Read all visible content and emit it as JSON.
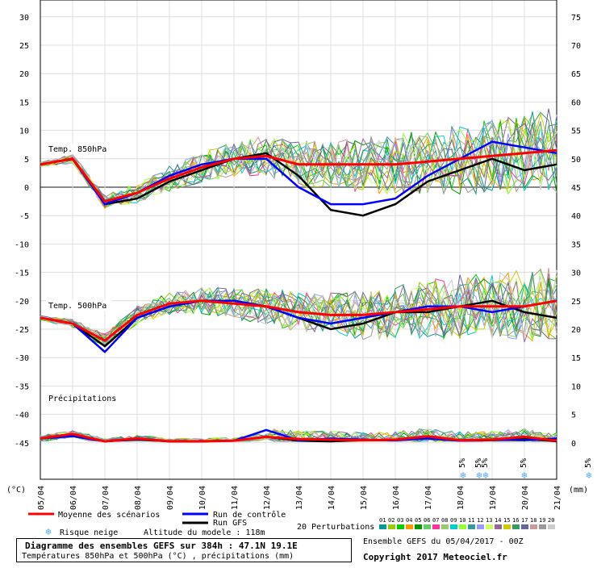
{
  "chart_data": {
    "type": "line",
    "dates": [
      "05/04",
      "06/04",
      "07/04",
      "08/04",
      "09/04",
      "10/04",
      "11/04",
      "12/04",
      "13/04",
      "14/04",
      "15/04",
      "16/04",
      "17/04",
      "18/04",
      "19/04",
      "20/04",
      "21/04"
    ],
    "left_axis_unit": "(°C)",
    "right_axis_unit": "(mm)",
    "left_ticks": [
      30,
      25,
      20,
      15,
      10,
      5,
      0,
      -5,
      -10,
      -15,
      -20,
      -25,
      -30,
      -35,
      -40,
      -45
    ],
    "right_ticks": [
      75,
      70,
      65,
      60,
      55,
      50,
      45,
      40,
      35,
      30,
      25,
      20,
      15,
      10,
      5,
      0
    ],
    "left_ylim": [
      -45,
      30
    ],
    "right_ylim": [
      0,
      75
    ],
    "panel_labels": {
      "t850": "Temp. 850hPa",
      "t500": "Temp. 500hPa",
      "precip": "Précipitations"
    },
    "snow_risk_label": "5%",
    "snow_days": [
      13.1,
      13.6,
      13.8,
      15.0,
      17.0
    ],
    "series": {
      "t850": {
        "gfs": [
          4,
          5,
          -3,
          -2,
          1,
          3,
          5,
          6,
          2,
          -4,
          -5,
          -3,
          1,
          3,
          5,
          3,
          4
        ],
        "control": [
          4,
          5,
          -3,
          -1,
          2,
          4,
          5,
          5,
          0,
          -3,
          -3,
          -2,
          2,
          5,
          8,
          7,
          6
        ],
        "mean": [
          4,
          5,
          -2.5,
          -1,
          1.5,
          3.5,
          5,
          5.5,
          4,
          4,
          4,
          4,
          4.5,
          5,
          5.5,
          6,
          6.5
        ]
      },
      "t500": {
        "gfs": [
          -23,
          -24,
          -28,
          -23,
          -21,
          -20,
          -20,
          -21,
          -23,
          -25,
          -24,
          -22,
          -22,
          -21,
          -20,
          -22,
          -23
        ],
        "control": [
          -23,
          -24,
          -29,
          -23,
          -21,
          -20,
          -20,
          -21,
          -23,
          -24,
          -23,
          -22,
          -21,
          -21,
          -22,
          -21,
          -20
        ],
        "mean": [
          -23,
          -24,
          -27,
          -22.5,
          -20.5,
          -20,
          -20.5,
          -21,
          -22,
          -22.5,
          -22.5,
          -22,
          -21.5,
          -21,
          -21,
          -21,
          -20
        ]
      },
      "precip_mm": {
        "gfs": [
          0.5,
          1.2,
          0,
          0.3,
          0,
          0,
          0.1,
          0.8,
          0.1,
          0,
          0.2,
          0.2,
          0.8,
          0.1,
          0.2,
          0.5,
          0
        ],
        "control": [
          0.5,
          0.9,
          0,
          0.4,
          0,
          0,
          0.1,
          2.0,
          0.2,
          0.5,
          0.3,
          0.2,
          0.5,
          0.1,
          0.3,
          0.2,
          0.5
        ],
        "mean": [
          0.5,
          1.3,
          0,
          0.5,
          0,
          0,
          0.1,
          0.8,
          0.4,
          0.3,
          0.2,
          0.3,
          0.9,
          0.2,
          0.3,
          0.8,
          0.1
        ]
      }
    },
    "legend": {
      "mean": "Moyenne des scénarios",
      "control": "Run de contrôle",
      "gfs": "Run GFS",
      "snow": "Risque neige",
      "altitude": "Altitude du modele : 118m",
      "perturbations_label": "20 Perturbations",
      "perturbation_ids": [
        "01",
        "02",
        "03",
        "04",
        "05",
        "06",
        "07",
        "08",
        "09",
        "10",
        "11",
        "12",
        "13",
        "14",
        "15",
        "16",
        "17",
        "18",
        "19",
        "20"
      ]
    },
    "colors": {
      "mean": "#ff0000",
      "control": "#0000ff",
      "gfs": "#000000",
      "perturbations": [
        "#009999",
        "#99cc00",
        "#00cc00",
        "#ff9900",
        "#009900",
        "#66cc66",
        "#ff3399",
        "#99cc66",
        "#00cccc",
        "#99ff33",
        "#339999",
        "#9999ff",
        "#ccff66",
        "#996699",
        "#cccc00",
        "#339966",
        "#666699",
        "#cc9999",
        "#999999",
        "#cccccc"
      ]
    }
  },
  "footer": {
    "title": "Diagramme des ensembles GEFS sur 384h : 47.1N 19.1E",
    "subtitle": "Températures 850hPa et 500hPa (°C) , précipitations (mm)",
    "run": "Ensemble GEFS du 05/04/2017 - 00Z",
    "copyright": "Copyright 2017 Meteociel.fr"
  }
}
